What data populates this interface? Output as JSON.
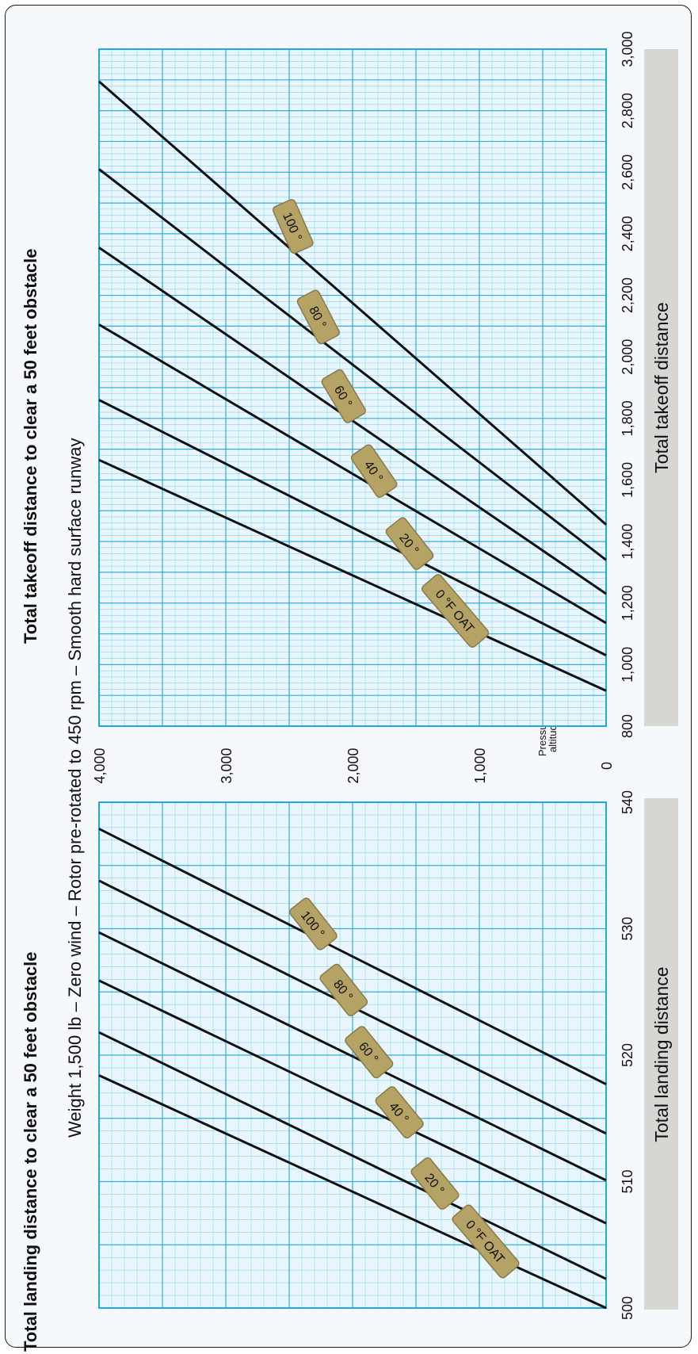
{
  "header": {
    "landing_title": "Total landing distance to clear a 50 feet obstacle",
    "takeoff_title": "Total takeoff distance to clear a 50 feet obstacle",
    "conditions": "Weight 1,500 lb – Zero wind – Rotor pre-rotated to 450 rpm – Smooth hard surface runway"
  },
  "shared_axis": {
    "label_line1": "Pressure",
    "label_line2": "altitude",
    "ticks": [
      "0",
      "1,000",
      "2,000",
      "3,000",
      "4,000"
    ],
    "range": [
      0,
      4000
    ]
  },
  "colors": {
    "grid": "#1ea8e0",
    "plot_bg": "#e9f6fd",
    "line": "#111111",
    "tag_fill": "#b5a265",
    "tag_stroke": "#8c7a45",
    "axis_bar": "#d8d6d2"
  },
  "chart_data": [
    {
      "type": "line",
      "title": "Total landing distance to clear a 50 feet obstacle",
      "xlabel": "Total landing distance",
      "ylabel": "Pressure altitude",
      "x_ticks": [
        "500",
        "510",
        "520",
        "530",
        "540"
      ],
      "xlim": [
        500,
        540
      ],
      "ylim": [
        0,
        4000
      ],
      "grid": true,
      "series": [
        {
          "name": "0 °F OAT",
          "x": [
            500,
            518.4
          ],
          "y": [
            0,
            4000
          ]
        },
        {
          "name": "20 °",
          "x": [
            502.3,
            521.8
          ],
          "y": [
            0,
            4000
          ]
        },
        {
          "name": "40 °",
          "x": [
            506.7,
            525.9
          ],
          "y": [
            0,
            4000
          ]
        },
        {
          "name": "60 °",
          "x": [
            510.1,
            529.7
          ],
          "y": [
            0,
            4000
          ]
        },
        {
          "name": "80 °",
          "x": [
            513.8,
            533.8
          ],
          "y": [
            0,
            4000
          ]
        },
        {
          "name": "100 °",
          "x": [
            517.7,
            537.9
          ],
          "y": [
            0,
            4000
          ]
        }
      ]
    },
    {
      "type": "line",
      "title": "Total takeoff distance to clear a 50 feet obstacle",
      "xlabel": "Total takeoff distance",
      "ylabel": "Pressure altitude",
      "x_ticks": [
        "800",
        "1,000",
        "1,200",
        "1,400",
        "1,600",
        "1,800",
        "2,000",
        "2,200",
        "2,400",
        "2,600",
        "2,800",
        "3,000"
      ],
      "xlim": [
        800,
        3000
      ],
      "ylim": [
        0,
        4000
      ],
      "grid": true,
      "series": [
        {
          "name": "0 °F OAT",
          "x": [
            915,
            1665
          ],
          "y": [
            0,
            4000
          ]
        },
        {
          "name": "20 °",
          "x": [
            1030,
            1860
          ],
          "y": [
            0,
            4000
          ]
        },
        {
          "name": "40 °",
          "x": [
            1135,
            2105
          ],
          "y": [
            0,
            4000
          ]
        },
        {
          "name": "60 °",
          "x": [
            1230,
            2355
          ],
          "y": [
            0,
            4000
          ]
        },
        {
          "name": "80 °",
          "x": [
            1340,
            2610
          ],
          "y": [
            0,
            4000
          ]
        },
        {
          "name": "100 °",
          "x": [
            1455,
            2895
          ],
          "y": [
            0,
            4000
          ]
        }
      ]
    }
  ]
}
